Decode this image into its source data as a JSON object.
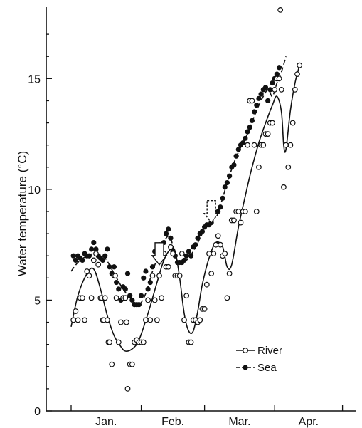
{
  "chart_data": {
    "type": "scatter",
    "ylabel": "Water temperature (°C)",
    "ylim": [
      0,
      18
    ],
    "yticks": [
      0,
      5,
      10,
      15
    ],
    "months": [
      "Jan.",
      "Feb.",
      "Mar.",
      "Apr."
    ],
    "x_unit": "day of season (month boundaries at 1, 32, 60, 91, 121)",
    "xlim": [
      1,
      121
    ],
    "grid": false,
    "legend_position": "bottom-right",
    "series": [
      {
        "name": "River",
        "marker": "open-circle",
        "line": "solid",
        "points": [
          [
            2,
            4.1
          ],
          [
            3,
            4.5
          ],
          [
            4,
            4.1
          ],
          [
            5,
            5.1
          ],
          [
            6,
            5.1
          ],
          [
            7,
            4.1
          ],
          [
            8,
            6.3
          ],
          [
            9,
            6.1
          ],
          [
            10,
            5.1
          ],
          [
            11,
            6.8
          ],
          [
            12,
            7.1
          ],
          [
            13,
            6.6
          ],
          [
            14,
            5.1
          ],
          [
            14.5,
            5.1
          ],
          [
            15,
            4.1
          ],
          [
            15.5,
            4.1
          ],
          [
            16,
            5.1
          ],
          [
            17,
            4.1
          ],
          [
            17.5,
            3.1
          ],
          [
            18,
            3.1
          ],
          [
            19,
            2.1
          ],
          [
            20,
            6.1
          ],
          [
            20.5,
            6.1
          ],
          [
            21,
            5.1
          ],
          [
            22,
            3.1
          ],
          [
            23,
            4.0
          ],
          [
            24,
            5.1
          ],
          [
            25,
            5.1
          ],
          [
            25.5,
            4.0
          ],
          [
            26,
            1.0
          ],
          [
            27,
            2.1
          ],
          [
            28,
            2.1
          ],
          [
            29,
            3.1
          ],
          [
            30,
            3.2
          ],
          [
            31,
            3.1
          ],
          [
            32,
            3.1
          ],
          [
            33,
            3.1
          ],
          [
            34,
            4.1
          ],
          [
            35,
            5.0
          ],
          [
            36,
            4.1
          ],
          [
            37,
            6.1
          ],
          [
            38,
            5.0
          ],
          [
            39,
            4.1
          ],
          [
            40,
            6.1
          ],
          [
            41,
            5.1
          ],
          [
            42,
            7.1
          ],
          [
            43,
            6.5
          ],
          [
            44,
            6.5
          ],
          [
            45,
            7.4
          ],
          [
            46,
            7.1
          ],
          [
            47,
            6.1
          ],
          [
            48,
            6.1
          ],
          [
            49,
            6.1
          ],
          [
            50,
            7.1
          ],
          [
            51,
            4.1
          ],
          [
            52,
            5.2
          ],
          [
            53,
            3.1
          ],
          [
            54,
            3.1
          ],
          [
            55,
            4.1
          ],
          [
            56,
            4.1
          ],
          [
            57,
            4.0
          ],
          [
            58,
            4.1
          ],
          [
            59,
            4.6
          ],
          [
            60,
            4.6
          ],
          [
            61,
            5.7
          ],
          [
            62,
            7.1
          ],
          [
            63,
            6.2
          ],
          [
            64,
            7.1
          ],
          [
            65,
            7.5
          ],
          [
            66,
            7.9
          ],
          [
            67,
            7.5
          ],
          [
            68,
            7.0
          ],
          [
            69,
            7.1
          ],
          [
            70,
            5.1
          ],
          [
            71,
            6.2
          ],
          [
            72,
            8.6
          ],
          [
            73,
            8.6
          ],
          [
            74,
            9.0
          ],
          [
            75,
            9.0
          ],
          [
            76,
            8.5
          ],
          [
            77,
            9.0
          ],
          [
            78,
            9.0
          ],
          [
            79,
            12.0
          ],
          [
            80,
            14.0
          ],
          [
            81,
            14.0
          ],
          [
            82,
            12.0
          ],
          [
            83,
            9.0
          ],
          [
            84,
            11.0
          ],
          [
            85,
            12.0
          ],
          [
            86,
            12.0
          ],
          [
            87,
            12.5
          ],
          [
            88,
            12.5
          ],
          [
            89,
            13.0
          ],
          [
            90,
            13.0
          ],
          [
            91,
            14.5
          ],
          [
            92,
            15.0
          ],
          [
            93,
            15.0
          ],
          [
            94,
            14.5
          ],
          [
            95,
            10.1
          ],
          [
            96,
            12.0
          ],
          [
            97,
            11.0
          ],
          [
            98,
            12.0
          ],
          [
            99,
            13.0
          ],
          [
            100,
            14.5
          ],
          [
            101,
            15.2
          ],
          [
            102,
            15.6
          ],
          [
            93.5,
            18.1
          ]
        ],
        "curve": [
          [
            1,
            3.8
          ],
          [
            4,
            5.2
          ],
          [
            8,
            6.2
          ],
          [
            11,
            6.4
          ],
          [
            14,
            5.5
          ],
          [
            17,
            4.3
          ],
          [
            20,
            3.4
          ],
          [
            23,
            2.9
          ],
          [
            25,
            2.7
          ],
          [
            28,
            2.8
          ],
          [
            31,
            3.2
          ],
          [
            35,
            4.4
          ],
          [
            39,
            5.8
          ],
          [
            42,
            6.8
          ],
          [
            45,
            7.3
          ],
          [
            47,
            7.2
          ],
          [
            49,
            6.0
          ],
          [
            51,
            4.4
          ],
          [
            53,
            3.6
          ],
          [
            55,
            3.6
          ],
          [
            57,
            4.5
          ],
          [
            59,
            5.7
          ],
          [
            62,
            6.9
          ],
          [
            65,
            7.6
          ],
          [
            68,
            7.4
          ],
          [
            70,
            6.5
          ],
          [
            72,
            6.6
          ],
          [
            75,
            8.3
          ],
          [
            78,
            9.7
          ],
          [
            81,
            11.0
          ],
          [
            84,
            12.1
          ],
          [
            87,
            13.0
          ],
          [
            90,
            13.8
          ],
          [
            92,
            14.2
          ],
          [
            94,
            13.5
          ],
          [
            95,
            12.0
          ],
          [
            96,
            11.8
          ],
          [
            98,
            13.6
          ],
          [
            100,
            14.8
          ],
          [
            102,
            15.6
          ]
        ]
      },
      {
        "name": "Sea",
        "marker": "filled-circle",
        "line": "dashed",
        "points": [
          [
            2,
            7.0
          ],
          [
            3,
            6.8
          ],
          [
            4,
            7.0
          ],
          [
            5,
            6.9
          ],
          [
            6,
            6.8
          ],
          [
            7,
            7.1
          ],
          [
            8,
            7.0
          ],
          [
            9,
            7.0
          ],
          [
            10,
            7.3
          ],
          [
            11,
            7.6
          ],
          [
            12,
            7.3
          ],
          [
            13,
            7.0
          ],
          [
            14,
            6.9
          ],
          [
            15,
            6.8
          ],
          [
            16,
            7.0
          ],
          [
            17,
            7.3
          ],
          [
            18,
            6.5
          ],
          [
            19,
            6.2
          ],
          [
            20,
            6.5
          ],
          [
            21,
            5.8
          ],
          [
            22,
            5.5
          ],
          [
            23,
            5.0
          ],
          [
            24,
            5.6
          ],
          [
            25,
            5.5
          ],
          [
            26,
            6.2
          ],
          [
            27,
            5.2
          ],
          [
            28,
            5.0
          ],
          [
            29,
            4.8
          ],
          [
            30,
            4.8
          ],
          [
            31,
            4.8
          ],
          [
            32,
            5.2
          ],
          [
            33,
            6.0
          ],
          [
            34,
            6.3
          ],
          [
            35,
            5.5
          ],
          [
            36,
            5.8
          ],
          [
            37,
            6.5
          ],
          [
            38,
            7.2
          ],
          [
            39,
            7.0
          ],
          [
            40,
            7.5
          ],
          [
            41,
            7.2
          ],
          [
            42,
            7.6
          ],
          [
            43,
            8.0
          ],
          [
            44,
            8.2
          ],
          [
            45,
            7.8
          ],
          [
            46,
            7.2
          ],
          [
            47,
            7.0
          ],
          [
            48,
            6.7
          ],
          [
            49,
            6.7
          ],
          [
            50,
            6.7
          ],
          [
            51,
            6.8
          ],
          [
            52,
            7.0
          ],
          [
            53,
            7.2
          ],
          [
            54,
            7.0
          ],
          [
            55,
            7.4
          ],
          [
            56,
            7.5
          ],
          [
            57,
            7.8
          ],
          [
            58,
            8.0
          ],
          [
            59,
            8.1
          ],
          [
            60,
            8.3
          ],
          [
            61,
            8.4
          ],
          [
            62,
            8.4
          ],
          [
            63,
            8.5
          ],
          [
            64,
            8.8
          ],
          [
            65,
            8.9
          ],
          [
            66,
            9.0
          ],
          [
            67,
            9.2
          ],
          [
            68,
            9.6
          ],
          [
            69,
            10.1
          ],
          [
            70,
            10.3
          ],
          [
            71,
            10.6
          ],
          [
            72,
            11.0
          ],
          [
            73,
            11.1
          ],
          [
            74,
            11.5
          ],
          [
            75,
            11.8
          ],
          [
            76,
            12.0
          ],
          [
            77,
            12.1
          ],
          [
            78,
            12.3
          ],
          [
            79,
            12.6
          ],
          [
            80,
            12.8
          ],
          [
            81,
            13.1
          ],
          [
            82,
            13.5
          ],
          [
            83,
            13.8
          ],
          [
            84,
            14.1
          ],
          [
            85,
            14.3
          ],
          [
            86,
            14.5
          ],
          [
            87,
            14.6
          ],
          [
            88,
            14.0
          ],
          [
            89,
            14.5
          ],
          [
            90,
            14.8
          ],
          [
            91,
            15.0
          ],
          [
            92,
            15.2
          ],
          [
            93,
            15.5
          ]
        ],
        "curve": [
          [
            1,
            6.3
          ],
          [
            4,
            6.7
          ],
          [
            8,
            7.0
          ],
          [
            12,
            7.1
          ],
          [
            16,
            6.9
          ],
          [
            20,
            6.2
          ],
          [
            24,
            5.5
          ],
          [
            28,
            5.0
          ],
          [
            31,
            4.8
          ],
          [
            34,
            5.3
          ],
          [
            37,
            6.3
          ],
          [
            40,
            7.1
          ],
          [
            43,
            7.8
          ],
          [
            45,
            7.8
          ],
          [
            47,
            7.0
          ],
          [
            49,
            6.7
          ],
          [
            52,
            6.8
          ],
          [
            55,
            7.2
          ],
          [
            58,
            7.8
          ],
          [
            61,
            8.4
          ],
          [
            64,
            8.8
          ],
          [
            67,
            9.3
          ],
          [
            70,
            10.3
          ],
          [
            73,
            11.2
          ],
          [
            76,
            11.9
          ],
          [
            79,
            12.5
          ],
          [
            82,
            13.3
          ],
          [
            85,
            14.0
          ],
          [
            88,
            14.5
          ],
          [
            90,
            14.2
          ],
          [
            92,
            14.8
          ],
          [
            94,
            15.3
          ],
          [
            96,
            16.0
          ]
        ]
      }
    ],
    "annotations": [
      {
        "type": "arrow-solid",
        "x": 40,
        "y": 6.5
      },
      {
        "type": "arrow-dashed",
        "x": 63,
        "y": 8.4
      }
    ]
  }
}
